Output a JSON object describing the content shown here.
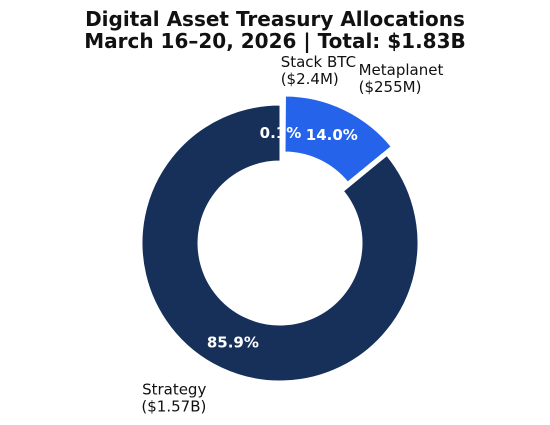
{
  "chart_data": {
    "type": "pie",
    "title": "Digital Asset Treasury Allocations",
    "subtitle": "March 16–20, 2026 | Total: $1.83B",
    "slices": [
      {
        "name": "Stack BTC",
        "value": 2.4,
        "amount_label": "($2.4M)",
        "pct_label": "0.1%",
        "color": "#e8edf5"
      },
      {
        "name": "Metaplanet",
        "value": 255,
        "amount_label": "($255M)",
        "pct_label": "14.0%",
        "color": "#2563eb",
        "exploded": true
      },
      {
        "name": "Strategy",
        "value": 1570,
        "amount_label": "($1.57B)",
        "pct_label": "85.9%",
        "color": "#16305a"
      }
    ],
    "donut": true,
    "start_angle_deg": 90,
    "direction": "clockwise"
  }
}
